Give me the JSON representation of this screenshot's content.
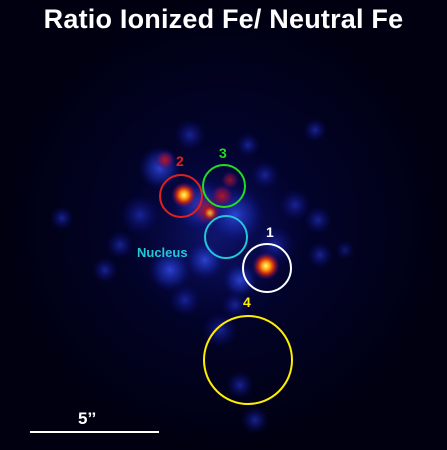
{
  "title": "Ratio Ionized Fe/ Neutral Fe",
  "regions": [
    {
      "id": "1",
      "color": "#ffffff"
    },
    {
      "id": "2",
      "color": "#e02020"
    },
    {
      "id": "3",
      "color": "#22dd22"
    },
    {
      "id": "4",
      "color": "#ffee00"
    },
    {
      "id": "nucleus",
      "label": "Nucleus",
      "color": "#22c8d8"
    }
  ],
  "scale_bar": {
    "label": "5’’",
    "color": "#ffffff"
  },
  "colormap": [
    "#000010",
    "#07096e",
    "#1a2cc8",
    "#b01414",
    "#ff6000",
    "#ffff66"
  ]
}
